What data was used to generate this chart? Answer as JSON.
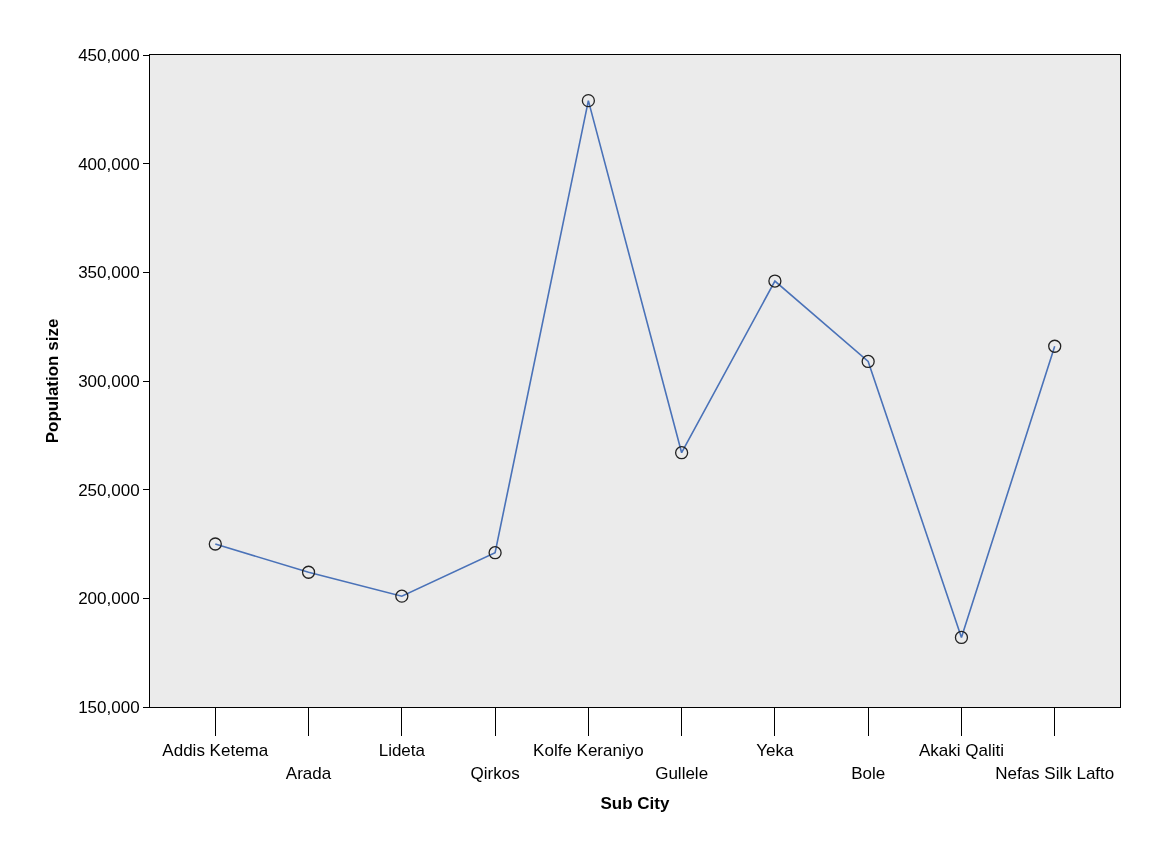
{
  "chart_data": {
    "type": "line",
    "xlabel": "Sub City",
    "ylabel": "Population size",
    "categories": [
      "Addis Ketema",
      "Arada",
      "Lideta",
      "Qirkos",
      "Kolfe Keraniyo",
      "Gullele",
      "Yeka",
      "Bole",
      "Akaki Qaliti",
      "Nefas Silk Lafto"
    ],
    "series": [
      {
        "color": "#4a72b8",
        "values": [
          225000,
          212000,
          201000,
          221000,
          429000,
          267000,
          346000,
          309000,
          182000,
          316000
        ]
      }
    ],
    "ylim": [
      150000,
      450000
    ],
    "yticks": [
      {
        "value": 150000,
        "label": "150,000"
      },
      {
        "value": 200000,
        "label": "200,000"
      },
      {
        "value": 250000,
        "label": "250,000"
      },
      {
        "value": 300000,
        "label": "300,000"
      },
      {
        "value": 350000,
        "label": "350,000"
      },
      {
        "value": 400000,
        "label": "400,000"
      },
      {
        "value": 450000,
        "label": "450,000"
      }
    ],
    "grid": false,
    "marker": "circle",
    "line_style": "solid"
  }
}
